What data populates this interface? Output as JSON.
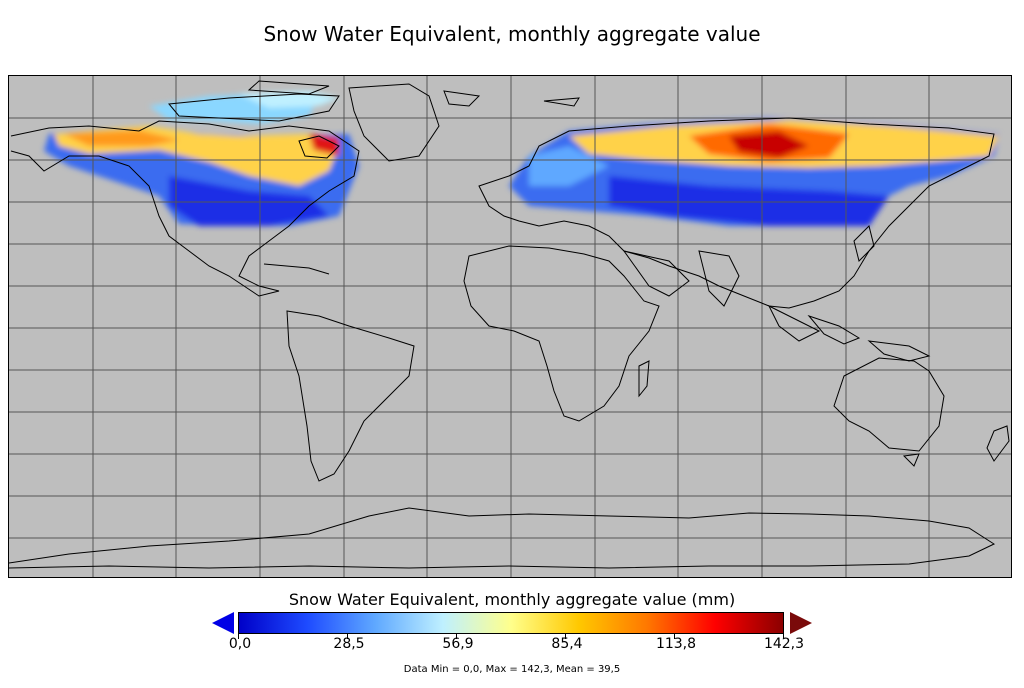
{
  "map": {
    "title": "Snow Water Equivalent, monthly aggregate value",
    "background_color": "#bebebe",
    "grid_color": "#555555"
  },
  "colorbar": {
    "title": "Snow Water Equivalent, monthly aggregate value (mm)",
    "ticks": [
      "0,0",
      "28,5",
      "56,9",
      "85,4",
      "113,8",
      "142,3"
    ],
    "colors": [
      "#0000c8",
      "#1e4bff",
      "#5fa8ff",
      "#bff0ff",
      "#ffff8c",
      "#ffc800",
      "#ff7800",
      "#ff0000",
      "#8b0000"
    ],
    "under_color": "#0000e6",
    "over_color": "#7a0a0a"
  },
  "stats": {
    "text": "Data Min = 0,0, Max = 142,3, Mean = 39,5",
    "min": 0.0,
    "max": 142.3,
    "mean": 39.5
  }
}
